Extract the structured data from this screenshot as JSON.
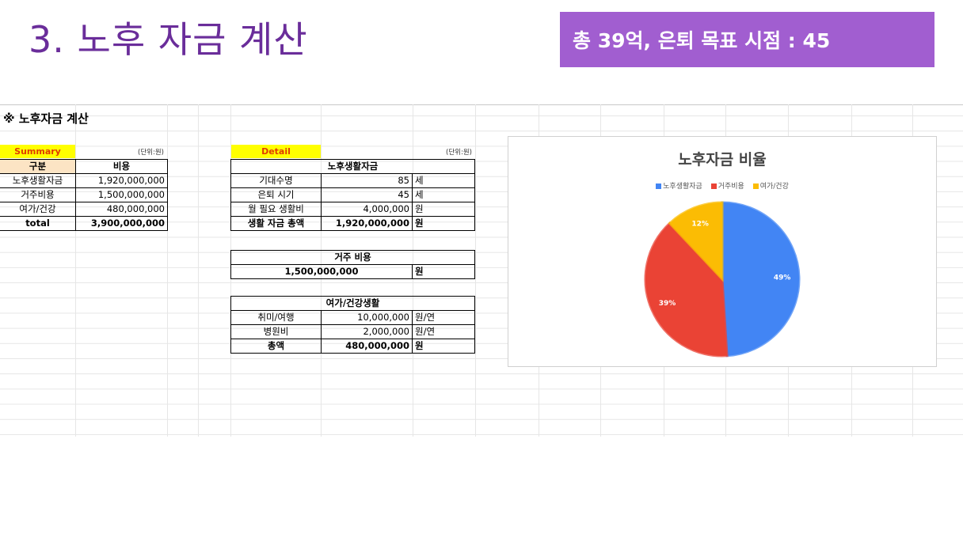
{
  "slide": {
    "title": "3. 노후 자금 계산",
    "banner": "총 39억, 은퇴 목표 시점 : 45"
  },
  "sheet": {
    "heading": "※ 노후자금 계산",
    "summary": {
      "tag": "Summary",
      "unit": "(단위:원)",
      "col_header": [
        "구분",
        "비용"
      ],
      "rows": [
        [
          "노후생활자금",
          "1,920,000,000"
        ],
        [
          "거주비용",
          "1,500,000,000"
        ],
        [
          "여가/건강",
          "480,000,000"
        ],
        [
          "total",
          "3,900,000,000"
        ]
      ]
    },
    "detail": {
      "tag": "Detail",
      "unit": "(단위:원)",
      "living": {
        "header": "노후생활자금",
        "rows": [
          [
            "기대수명",
            "85",
            "세"
          ],
          [
            "은퇴 시기",
            "45",
            "세"
          ],
          [
            "월 필요 생활비",
            "4,000,000",
            "원"
          ],
          [
            "생활 자금 총액",
            "1,920,000,000",
            "원"
          ]
        ]
      },
      "housing": {
        "header": "거주 비용",
        "value": "1,500,000,000",
        "unit": "원"
      },
      "leisure": {
        "header": "여가/건강생활",
        "rows": [
          [
            "취미/여행",
            "10,000,000",
            "원/연"
          ],
          [
            "병원비",
            "2,000,000",
            "원/연"
          ],
          [
            "총액",
            "480,000,000",
            "원"
          ]
        ]
      }
    }
  },
  "chart_data": {
    "type": "pie",
    "title": "노후자금 비율",
    "legend_position": "top",
    "categories": [
      "노후생활자금",
      "거주비용",
      "여가/건강"
    ],
    "values": [
      49,
      39,
      12
    ],
    "labels": [
      "49%",
      "39%",
      "12%"
    ],
    "colors": [
      "#4285f4",
      "#ea4335",
      "#fbbc04"
    ]
  }
}
